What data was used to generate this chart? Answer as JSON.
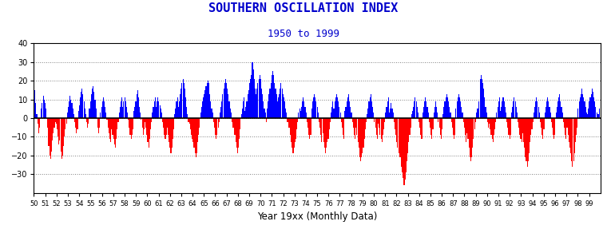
{
  "title": "SOUTHERN OSCILLATION INDEX",
  "subtitle": "1950 to 1999",
  "xlabel": "Year 19xx (Monthly Data)",
  "title_color": "#0000CC",
  "subtitle_color": "#0000CC",
  "xlabel_color": "#000000",
  "bar_color_pos": "#0000FF",
  "bar_color_neg": "#FF0000",
  "background_color": "#FFFFFF",
  "ylim": [
    -40,
    40
  ],
  "yticks": [
    -30,
    -20,
    -10,
    0,
    10,
    20,
    30,
    40
  ],
  "soi_data": [
    22,
    15,
    8,
    2,
    -3,
    -8,
    -5,
    0,
    5,
    8,
    12,
    10,
    8,
    5,
    0,
    -5,
    -15,
    -20,
    -22,
    -18,
    -12,
    -8,
    -5,
    -2,
    -3,
    -6,
    -10,
    -14,
    -12,
    -18,
    -22,
    -20,
    -15,
    -10,
    -6,
    -3,
    3,
    6,
    9,
    12,
    10,
    8,
    5,
    2,
    -2,
    -5,
    -8,
    -6,
    4,
    7,
    11,
    14,
    16,
    13,
    9,
    5,
    2,
    -2,
    -5,
    -3,
    5,
    9,
    13,
    16,
    17,
    14,
    10,
    5,
    0,
    -5,
    -8,
    -5,
    3,
    6,
    9,
    11,
    9,
    6,
    3,
    -1,
    -5,
    -8,
    -11,
    -13,
    -6,
    -9,
    -11,
    -14,
    -16,
    -11,
    -6,
    -2,
    3,
    6,
    9,
    11,
    6,
    9,
    11,
    9,
    6,
    3,
    -1,
    -5,
    -9,
    -11,
    -9,
    -6,
    4,
    6,
    9,
    13,
    15,
    11,
    6,
    3,
    -1,
    -5,
    -9,
    -6,
    -2,
    -5,
    -9,
    -13,
    -16,
    -11,
    -6,
    -2,
    3,
    6,
    9,
    11,
    6,
    9,
    11,
    9,
    7,
    5,
    3,
    -2,
    -5,
    -9,
    -11,
    -9,
    -5,
    -9,
    -13,
    -16,
    -19,
    -16,
    -11,
    -6,
    2,
    5,
    9,
    11,
    6,
    9,
    13,
    16,
    19,
    21,
    19,
    16,
    11,
    6,
    2,
    -2,
    -3,
    -6,
    -9,
    -11,
    -13,
    -16,
    -19,
    -21,
    -19,
    -13,
    -9,
    -5,
    3,
    6,
    9,
    11,
    13,
    15,
    17,
    19,
    20,
    19,
    13,
    9,
    5,
    3,
    -2,
    -5,
    -9,
    -11,
    -9,
    -5,
    -2,
    3,
    6,
    9,
    13,
    16,
    19,
    21,
    19,
    16,
    13,
    9,
    5,
    3,
    -2,
    -5,
    -5,
    -9,
    -13,
    -16,
    -19,
    -16,
    -11,
    -6,
    2,
    5,
    9,
    11,
    4,
    6,
    9,
    13,
    15,
    19,
    21,
    23,
    30,
    26,
    21,
    16,
    13,
    16,
    19,
    21,
    23,
    21,
    16,
    13,
    9,
    5,
    3,
    -2,
    5,
    9,
    13,
    16,
    19,
    23,
    25,
    23,
    19,
    16,
    13,
    9,
    11,
    13,
    16,
    19,
    16,
    13,
    11,
    9,
    5,
    3,
    -2,
    -5,
    -5,
    -9,
    -13,
    -16,
    -19,
    -16,
    -13,
    -11,
    -6,
    -2,
    3,
    5,
    4,
    6,
    9,
    11,
    9,
    6,
    3,
    -2,
    -5,
    -9,
    -11,
    -9,
    5,
    9,
    11,
    13,
    11,
    9,
    6,
    3,
    -2,
    -5,
    -9,
    -13,
    -8,
    -13,
    -16,
    -19,
    -16,
    -13,
    -11,
    -6,
    -2,
    3,
    6,
    9,
    5,
    9,
    11,
    13,
    11,
    9,
    6,
    3,
    -2,
    -5,
    -9,
    -11,
    4,
    6,
    9,
    11,
    13,
    9,
    6,
    3,
    -2,
    -5,
    -9,
    -11,
    -5,
    -9,
    -13,
    -16,
    -21,
    -23,
    -21,
    -19,
    -16,
    -11,
    -6,
    -2,
    2,
    5,
    9,
    11,
    13,
    9,
    6,
    3,
    -2,
    -5,
    -9,
    -11,
    -3,
    -5,
    -9,
    -11,
    -13,
    -9,
    -6,
    -2,
    3,
    6,
    9,
    11,
    3,
    5,
    8,
    5,
    3,
    -2,
    -6,
    -9,
    -13,
    -16,
    -19,
    -21,
    -21,
    -26,
    -29,
    -32,
    -36,
    -33,
    -29,
    -23,
    -19,
    -13,
    -9,
    -5,
    2,
    4,
    6,
    9,
    11,
    9,
    6,
    3,
    -2,
    -5,
    -9,
    -11,
    3,
    6,
    9,
    11,
    9,
    6,
    3,
    -2,
    -5,
    -9,
    -11,
    -6,
    3,
    6,
    9,
    6,
    3,
    -2,
    -5,
    -9,
    -11,
    -6,
    2,
    6,
    9,
    11,
    13,
    11,
    9,
    6,
    3,
    -2,
    -5,
    -9,
    -11,
    -9,
    5,
    9,
    11,
    13,
    11,
    9,
    6,
    3,
    -2,
    -5,
    -9,
    -13,
    -8,
    -11,
    -16,
    -21,
    -23,
    -21,
    -16,
    -11,
    -6,
    -2,
    3,
    5,
    5,
    9,
    21,
    23,
    21,
    19,
    16,
    11,
    6,
    3,
    -2,
    -5,
    -3,
    -6,
    -9,
    -11,
    -13,
    -9,
    -6,
    -2,
    3,
    6,
    9,
    11,
    4,
    6,
    9,
    11,
    9,
    6,
    3,
    -2,
    -5,
    -9,
    -11,
    -9,
    3,
    6,
    9,
    11,
    9,
    6,
    3,
    -2,
    -5,
    -9,
    -11,
    -13,
    -8,
    -13,
    -16,
    -21,
    -23,
    -26,
    -23,
    -19,
    -13,
    -9,
    -6,
    -2,
    3,
    6,
    9,
    11,
    9,
    6,
    3,
    -2,
    -5,
    -9,
    -11,
    -6,
    3,
    6,
    9,
    11,
    9,
    6,
    3,
    -2,
    -5,
    -9,
    -11,
    -9,
    3,
    6,
    9,
    11,
    13,
    9,
    6,
    3,
    -2,
    -5,
    -9,
    -11,
    -5,
    -9,
    -13,
    -16,
    -19,
    -23,
    -26,
    -23,
    -19,
    -13,
    -9,
    -5,
    5,
    9,
    11,
    13,
    16,
    13,
    11,
    9,
    6,
    3,
    2,
    5,
    9,
    11,
    13,
    16,
    14,
    11,
    9,
    6,
    3,
    2,
    2,
    5
  ]
}
